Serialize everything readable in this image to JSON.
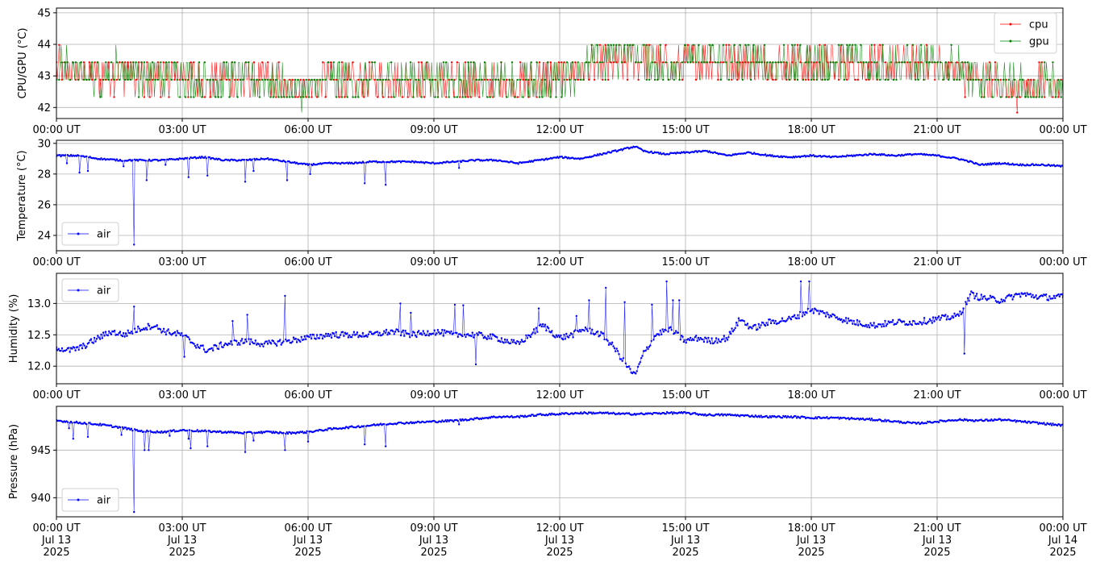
{
  "chart_data": [
    {
      "type": "line",
      "ylabel": "CPU/GPU (°C)",
      "ylim": [
        41.65,
        45.15
      ],
      "yticks": [
        42,
        43,
        44,
        45
      ],
      "xlim": [
        "2025-07-13 00:00",
        "2025-07-14 00:00"
      ],
      "xtick_labels": [
        "00:00 UT",
        "03:00 UT",
        "06:00 UT",
        "09:00 UT",
        "12:00 UT",
        "15:00 UT",
        "18:00 UT",
        "21:00 UT",
        "00:00 UT"
      ],
      "grid": true,
      "legend": "upper right",
      "series": [
        {
          "name": "cpu",
          "color": "#ff0000",
          "x_hours": [
            0,
            0.5,
            1,
            1.5,
            2,
            2.5,
            3,
            3.5,
            4,
            4.5,
            5,
            5.5,
            6,
            6.5,
            7,
            7.5,
            8,
            8.5,
            9,
            9.5,
            10,
            10.5,
            11,
            11.5,
            12,
            12.5,
            13,
            13.5,
            14,
            14.5,
            15,
            15.5,
            16,
            16.5,
            17,
            17.5,
            18,
            18.5,
            19,
            19.5,
            20,
            20.5,
            21,
            21.5,
            22,
            22.5,
            23,
            23.5,
            24
          ],
          "values": [
            43.2,
            43.1,
            42.9,
            43.2,
            42.9,
            42.9,
            43.1,
            42.8,
            42.9,
            42.8,
            42.9,
            42.6,
            42.7,
            42.9,
            42.8,
            42.7,
            42.9,
            42.8,
            42.9,
            42.7,
            42.9,
            42.8,
            42.7,
            42.9,
            43.0,
            43.1,
            43.3,
            43.5,
            43.6,
            43.3,
            43.4,
            43.5,
            43.4,
            43.4,
            43.3,
            43.4,
            43.3,
            43.4,
            43.4,
            43.3,
            43.4,
            43.3,
            43.3,
            43.2,
            42.8,
            42.7,
            42.6,
            42.7,
            42.7
          ]
        },
        {
          "name": "gpu",
          "color": "#008000",
          "x_hours": [
            0,
            0.5,
            1,
            1.5,
            2,
            2.5,
            3,
            3.5,
            4,
            4.5,
            5,
            5.5,
            6,
            6.5,
            7,
            7.5,
            8,
            8.5,
            9,
            9.5,
            10,
            10.5,
            11,
            11.5,
            12,
            12.5,
            13,
            13.5,
            14,
            14.5,
            15,
            15.5,
            16,
            16.5,
            17,
            17.5,
            18,
            18.5,
            19,
            19.5,
            20,
            20.5,
            21,
            21.5,
            22,
            22.5,
            23,
            23.5,
            24
          ],
          "values": [
            43.2,
            43.2,
            43.0,
            43.3,
            43.0,
            42.9,
            43.1,
            42.9,
            42.9,
            42.9,
            42.9,
            42.6,
            42.6,
            42.9,
            42.8,
            42.8,
            42.9,
            42.9,
            42.9,
            42.8,
            42.9,
            42.8,
            42.6,
            42.9,
            43.0,
            43.2,
            43.5,
            43.7,
            43.7,
            43.3,
            43.5,
            43.6,
            43.4,
            43.5,
            43.3,
            43.4,
            43.4,
            43.5,
            43.5,
            43.4,
            43.4,
            43.3,
            43.4,
            43.3,
            42.8,
            42.8,
            42.7,
            42.7,
            42.7
          ]
        }
      ]
    },
    {
      "type": "line",
      "ylabel": "Temperature (°C)",
      "ylim": [
        23.0,
        30.2
      ],
      "yticks": [
        24,
        26,
        28,
        30
      ],
      "xlim": [
        "2025-07-13 00:00",
        "2025-07-14 00:00"
      ],
      "xtick_labels": [
        "00:00 UT",
        "03:00 UT",
        "06:00 UT",
        "09:00 UT",
        "12:00 UT",
        "15:00 UT",
        "18:00 UT",
        "21:00 UT",
        "00:00 UT"
      ],
      "grid": true,
      "legend": "lower left",
      "series": [
        {
          "name": "air",
          "color": "#0000ff",
          "x_hours": [
            0,
            0.5,
            1,
            1.5,
            2,
            2.5,
            3,
            3.5,
            4,
            4.5,
            5,
            5.5,
            6,
            6.5,
            7,
            7.5,
            8,
            8.5,
            9,
            9.5,
            10,
            10.5,
            11,
            11.5,
            12,
            12.5,
            13,
            13.5,
            13.8,
            14,
            14.5,
            15,
            15.5,
            16,
            16.5,
            17,
            17.5,
            18,
            18.5,
            19,
            19.5,
            20,
            20.5,
            21,
            21.5,
            21.8,
            22,
            22.5,
            23,
            23.5,
            24
          ],
          "values": [
            29.2,
            29.2,
            29.0,
            28.9,
            28.9,
            28.9,
            29.0,
            29.1,
            28.9,
            28.9,
            29.0,
            28.8,
            28.6,
            28.7,
            28.7,
            28.8,
            28.8,
            28.8,
            28.7,
            28.8,
            28.9,
            28.9,
            28.7,
            28.9,
            29.1,
            29.0,
            29.3,
            29.6,
            29.8,
            29.5,
            29.3,
            29.4,
            29.5,
            29.2,
            29.4,
            29.2,
            29.1,
            29.2,
            29.1,
            29.2,
            29.3,
            29.2,
            29.3,
            29.2,
            29.0,
            28.8,
            28.6,
            28.7,
            28.6,
            28.6,
            28.5
          ],
          "dips": [
            [
              0.25,
              28.7
            ],
            [
              0.55,
              28.1
            ],
            [
              0.75,
              28.2
            ],
            [
              1.6,
              28.5
            ],
            [
              1.85,
              23.4
            ],
            [
              2.15,
              27.6
            ],
            [
              2.6,
              28.6
            ],
            [
              3.15,
              27.8
            ],
            [
              3.6,
              27.9
            ],
            [
              4.5,
              27.5
            ],
            [
              4.7,
              28.2
            ],
            [
              5.5,
              27.6
            ],
            [
              6.05,
              28.0
            ],
            [
              7.35,
              27.4
            ],
            [
              7.85,
              27.3
            ],
            [
              9.6,
              28.4
            ]
          ]
        }
      ]
    },
    {
      "type": "line",
      "ylabel": "Humidity (%)",
      "ylim": [
        11.72,
        13.48
      ],
      "yticks": [
        12.0,
        12.5,
        13.0
      ],
      "xlim": [
        "2025-07-13 00:00",
        "2025-07-14 00:00"
      ],
      "xtick_labels": [
        "00:00 UT",
        "03:00 UT",
        "06:00 UT",
        "09:00 UT",
        "12:00 UT",
        "15:00 UT",
        "18:00 UT",
        "21:00 UT",
        "00:00 UT"
      ],
      "grid": true,
      "legend": "upper left",
      "series": [
        {
          "name": "air",
          "color": "#0000ff",
          "x_hours": [
            0,
            0.3,
            0.6,
            1,
            1.3,
            1.6,
            2,
            2.3,
            2.6,
            3,
            3.3,
            3.6,
            4,
            4.5,
            5,
            5.5,
            6,
            6.5,
            7,
            7.5,
            8,
            8.5,
            9,
            9.5,
            10,
            10.5,
            11,
            11.3,
            11.6,
            12,
            12.3,
            12.6,
            13,
            13.3,
            13.6,
            13.8,
            14,
            14.3,
            14.6,
            15,
            15.3,
            15.6,
            16,
            16.3,
            16.6,
            17,
            17.5,
            18,
            18.5,
            19,
            19.5,
            20,
            20.5,
            21,
            21.5,
            21.7,
            21.8,
            22,
            22.5,
            23,
            23.5,
            24
          ],
          "values": [
            12.3,
            12.25,
            12.3,
            12.45,
            12.55,
            12.5,
            12.6,
            12.65,
            12.55,
            12.5,
            12.35,
            12.25,
            12.35,
            12.4,
            12.35,
            12.4,
            12.45,
            12.5,
            12.5,
            12.5,
            12.55,
            12.5,
            12.55,
            12.5,
            12.5,
            12.45,
            12.35,
            12.5,
            12.65,
            12.45,
            12.5,
            12.6,
            12.5,
            12.3,
            12.0,
            11.85,
            12.2,
            12.5,
            12.6,
            12.4,
            12.45,
            12.4,
            12.45,
            12.75,
            12.6,
            12.7,
            12.75,
            12.9,
            12.8,
            12.7,
            12.65,
            12.7,
            12.7,
            12.75,
            12.8,
            13.0,
            13.15,
            13.1,
            13.05,
            13.15,
            13.1,
            13.1
          ],
          "spikes": [
            [
              1.85,
              12.95
            ],
            [
              3.05,
              12.15
            ],
            [
              4.2,
              12.72
            ],
            [
              4.55,
              12.82
            ],
            [
              5.45,
              13.12
            ],
            [
              8.2,
              13.0
            ],
            [
              8.45,
              12.85
            ],
            [
              9.5,
              12.98
            ],
            [
              9.7,
              12.97
            ],
            [
              10.0,
              12.03
            ],
            [
              11.5,
              12.92
            ],
            [
              12.4,
              12.8
            ],
            [
              12.7,
              13.05
            ],
            [
              13.1,
              13.25
            ],
            [
              13.55,
              13.02
            ],
            [
              14.2,
              12.98
            ],
            [
              14.55,
              13.35
            ],
            [
              14.7,
              13.05
            ],
            [
              14.85,
              13.05
            ],
            [
              17.75,
              13.35
            ],
            [
              17.95,
              13.35
            ],
            [
              21.65,
              12.2
            ]
          ]
        }
      ]
    },
    {
      "type": "line",
      "ylabel": "Pressure (hPa)",
      "ylim": [
        938.0,
        949.6
      ],
      "yticks": [
        940,
        945
      ],
      "xlim": [
        "2025-07-13 00:00",
        "2025-07-14 00:00"
      ],
      "xtick_labels": [
        "00:00 UT\nJul 13\n2025",
        "03:00 UT\nJul 13\n2025",
        "06:00 UT\nJul 13\n2025",
        "09:00 UT\nJul 13\n2025",
        "12:00 UT\nJul 13\n2025",
        "15:00 UT\nJul 13\n2025",
        "18:00 UT\nJul 13\n2025",
        "21:00 UT\nJul 13\n2025",
        "00:00 UT\nJul 14\n2025"
      ],
      "grid": true,
      "legend": "lower left",
      "series": [
        {
          "name": "air",
          "color": "#0000ff",
          "x_hours": [
            0,
            0.5,
            1,
            1.5,
            2,
            2.5,
            3,
            3.5,
            4,
            4.5,
            5,
            5.5,
            6,
            6.5,
            7,
            7.5,
            8,
            8.5,
            9,
            9.5,
            10,
            10.5,
            11,
            11.5,
            12,
            12.5,
            13,
            13.5,
            14,
            14.5,
            15,
            15.5,
            16,
            16.5,
            17,
            17.5,
            18,
            18.5,
            19,
            19.5,
            20,
            20.5,
            21,
            21.5,
            22,
            22.5,
            23,
            23.5,
            24
          ],
          "values": [
            948.1,
            947.9,
            947.7,
            947.4,
            947.0,
            946.9,
            947.1,
            947.0,
            946.9,
            946.8,
            946.9,
            946.8,
            946.9,
            947.2,
            947.4,
            947.6,
            947.8,
            947.9,
            948.0,
            948.1,
            948.3,
            948.5,
            948.5,
            948.7,
            948.8,
            948.9,
            948.9,
            948.8,
            948.8,
            948.9,
            948.9,
            948.7,
            948.7,
            948.6,
            948.5,
            948.5,
            948.4,
            948.4,
            948.3,
            948.2,
            948.0,
            947.8,
            948.0,
            948.2,
            948.1,
            948.2,
            948.0,
            947.8,
            947.6
          ],
          "dips": [
            [
              0.3,
              947.3
            ],
            [
              0.4,
              946.2
            ],
            [
              0.75,
              946.4
            ],
            [
              1.55,
              946.6
            ],
            [
              1.85,
              938.5
            ],
            [
              2.1,
              945.0
            ],
            [
              2.2,
              945.0
            ],
            [
              2.7,
              946.5
            ],
            [
              3.15,
              946.2
            ],
            [
              3.2,
              945.2
            ],
            [
              3.6,
              945.4
            ],
            [
              4.5,
              944.8
            ],
            [
              4.7,
              946.0
            ],
            [
              5.45,
              945.0
            ],
            [
              6.0,
              945.9
            ],
            [
              7.35,
              945.6
            ],
            [
              7.85,
              945.4
            ],
            [
              9.6,
              947.7
            ]
          ]
        }
      ]
    }
  ]
}
